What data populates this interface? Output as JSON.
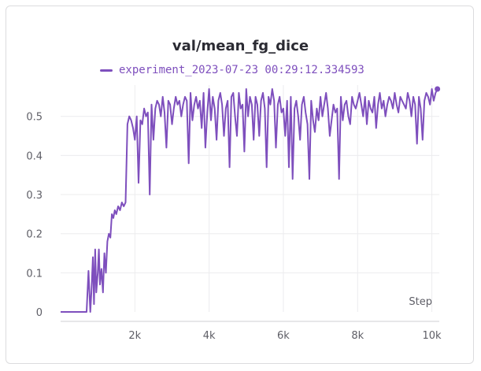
{
  "panel": {
    "title": "val/mean_fg_dice"
  },
  "legend": {
    "label": "experiment_2023-07-23 00:29:12.334593"
  },
  "colors": {
    "series": "#7e4fbd",
    "grid": "#ececee",
    "axis": "#cfcfd3"
  },
  "chart_data": {
    "type": "line",
    "title": "val/mean_fg_dice",
    "xlabel": "Step",
    "ylabel": "",
    "xlim": [
      0,
      10200
    ],
    "ylim": [
      0,
      0.58
    ],
    "grid": true,
    "legend_position": "top",
    "x_ticks": [
      {
        "value": 2000,
        "label": "2k"
      },
      {
        "value": 4000,
        "label": "4k"
      },
      {
        "value": 6000,
        "label": "6k"
      },
      {
        "value": 8000,
        "label": "8k"
      },
      {
        "value": 10000,
        "label": "10k"
      }
    ],
    "y_ticks": [
      {
        "value": 0,
        "label": "0"
      },
      {
        "value": 0.1,
        "label": "0.1"
      },
      {
        "value": 0.2,
        "label": "0.2"
      },
      {
        "value": 0.3,
        "label": "0.3"
      },
      {
        "value": 0.4,
        "label": "0.4"
      },
      {
        "value": 0.5,
        "label": "0.5"
      }
    ],
    "series": [
      {
        "name": "experiment_2023-07-23 00:29:12.334593",
        "color": "#7e4fbd",
        "x": [
          0,
          100,
          200,
          300,
          400,
          500,
          600,
          700,
          750,
          800,
          830,
          870,
          900,
          930,
          960,
          1000,
          1030,
          1060,
          1100,
          1140,
          1180,
          1220,
          1260,
          1300,
          1340,
          1380,
          1420,
          1460,
          1500,
          1550,
          1600,
          1650,
          1700,
          1750,
          1800,
          1850,
          1900,
          1950,
          2000,
          2050,
          2100,
          2150,
          2200,
          2250,
          2300,
          2350,
          2400,
          2450,
          2500,
          2550,
          2600,
          2650,
          2700,
          2750,
          2800,
          2850,
          2900,
          2950,
          3000,
          3050,
          3100,
          3150,
          3200,
          3250,
          3300,
          3350,
          3400,
          3450,
          3500,
          3550,
          3600,
          3650,
          3700,
          3750,
          3800,
          3850,
          3900,
          3950,
          4000,
          4050,
          4100,
          4150,
          4200,
          4250,
          4300,
          4350,
          4400,
          4450,
          4500,
          4550,
          4600,
          4650,
          4700,
          4750,
          4800,
          4850,
          4900,
          4950,
          5000,
          5050,
          5100,
          5150,
          5200,
          5250,
          5300,
          5350,
          5400,
          5450,
          5500,
          5550,
          5600,
          5650,
          5700,
          5750,
          5800,
          5850,
          5900,
          5950,
          6000,
          6050,
          6100,
          6150,
          6200,
          6250,
          6300,
          6350,
          6400,
          6450,
          6500,
          6550,
          6600,
          6650,
          6700,
          6750,
          6800,
          6850,
          6900,
          6950,
          7000,
          7050,
          7100,
          7150,
          7200,
          7250,
          7300,
          7350,
          7400,
          7450,
          7500,
          7550,
          7600,
          7650,
          7700,
          7750,
          7800,
          7850,
          7900,
          7950,
          8000,
          8050,
          8100,
          8150,
          8200,
          8250,
          8300,
          8350,
          8400,
          8450,
          8500,
          8550,
          8600,
          8650,
          8700,
          8750,
          8800,
          8850,
          8900,
          8950,
          9000,
          9050,
          9100,
          9150,
          9200,
          9250,
          9300,
          9350,
          9400,
          9450,
          9500,
          9550,
          9600,
          9650,
          9700,
          9750,
          9800,
          9850,
          9900,
          9950,
          10000,
          10050,
          10100,
          10150
        ],
        "y": [
          0,
          0,
          0,
          0,
          0,
          0,
          0,
          0,
          0.105,
          0,
          0.05,
          0.14,
          0.02,
          0.16,
          0.05,
          0.1,
          0.16,
          0.07,
          0.11,
          0.05,
          0.15,
          0.1,
          0.18,
          0.2,
          0.19,
          0.25,
          0.24,
          0.26,
          0.25,
          0.27,
          0.26,
          0.28,
          0.27,
          0.28,
          0.48,
          0.5,
          0.49,
          0.47,
          0.44,
          0.5,
          0.33,
          0.49,
          0.48,
          0.52,
          0.5,
          0.51,
          0.3,
          0.53,
          0.44,
          0.52,
          0.54,
          0.53,
          0.5,
          0.55,
          0.51,
          0.42,
          0.54,
          0.53,
          0.48,
          0.52,
          0.55,
          0.53,
          0.54,
          0.5,
          0.53,
          0.55,
          0.54,
          0.38,
          0.56,
          0.49,
          0.53,
          0.55,
          0.52,
          0.54,
          0.47,
          0.56,
          0.42,
          0.51,
          0.57,
          0.49,
          0.55,
          0.52,
          0.44,
          0.54,
          0.56,
          0.53,
          0.45,
          0.52,
          0.54,
          0.37,
          0.55,
          0.56,
          0.5,
          0.45,
          0.56,
          0.52,
          0.53,
          0.41,
          0.57,
          0.5,
          0.55,
          0.53,
          0.44,
          0.55,
          0.53,
          0.45,
          0.54,
          0.56,
          0.52,
          0.37,
          0.55,
          0.53,
          0.57,
          0.54,
          0.42,
          0.53,
          0.55,
          0.51,
          0.52,
          0.45,
          0.54,
          0.37,
          0.55,
          0.34,
          0.52,
          0.54,
          0.5,
          0.44,
          0.53,
          0.55,
          0.51,
          0.48,
          0.34,
          0.54,
          0.49,
          0.46,
          0.52,
          0.49,
          0.55,
          0.5,
          0.53,
          0.56,
          0.52,
          0.45,
          0.49,
          0.53,
          0.51,
          0.52,
          0.34,
          0.55,
          0.49,
          0.53,
          0.54,
          0.5,
          0.48,
          0.55,
          0.53,
          0.52,
          0.54,
          0.56,
          0.53,
          0.5,
          0.55,
          0.48,
          0.54,
          0.52,
          0.51,
          0.55,
          0.47,
          0.53,
          0.56,
          0.52,
          0.54,
          0.5,
          0.53,
          0.55,
          0.54,
          0.52,
          0.56,
          0.53,
          0.51,
          0.55,
          0.54,
          0.53,
          0.52,
          0.56,
          0.54,
          0.5,
          0.55,
          0.53,
          0.43,
          0.55,
          0.52,
          0.44,
          0.54,
          0.56,
          0.55,
          0.53,
          0.57,
          0.54,
          0.56,
          0.57
        ]
      }
    ]
  }
}
